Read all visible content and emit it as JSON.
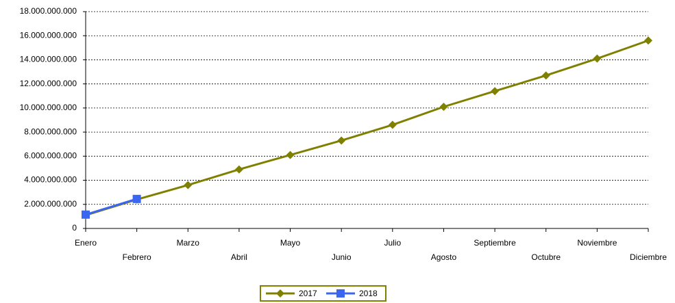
{
  "chart_data": {
    "type": "line",
    "categories": [
      "Enero",
      "Febrero",
      "Marzo",
      "Abril",
      "Mayo",
      "Junio",
      "Julio",
      "Agosto",
      "Septiembre",
      "Octubre",
      "Noviembre",
      "Diciembre"
    ],
    "series": [
      {
        "name": "2017",
        "color": "#808000",
        "marker": "diamond",
        "values": [
          1100000000,
          2400000000,
          3600000000,
          4900000000,
          6100000000,
          7300000000,
          8600000000,
          10100000000,
          11400000000,
          12700000000,
          14100000000,
          15600000000
        ]
      },
      {
        "name": "2018",
        "color": "#3a66f0",
        "marker": "square",
        "values": [
          1150000000,
          2450000000,
          null,
          null,
          null,
          null,
          null,
          null,
          null,
          null,
          null,
          null
        ]
      }
    ],
    "ylim": [
      0,
      18000000000
    ],
    "yticks": [
      0,
      {
        "value": 2000000000,
        "label": "2.000.000.000"
      },
      {
        "value": 4000000000,
        "label": "4.000.000.000"
      },
      {
        "value": 6000000000,
        "label": "6.000.000.000"
      },
      {
        "value": 8000000000,
        "label": "8.000.000.000"
      },
      {
        "value": 10000000000,
        "label": "10.000.000.000"
      },
      {
        "value": 12000000000,
        "label": "12.000.000.000"
      },
      {
        "value": 14000000000,
        "label": "14.000.000.000"
      },
      {
        "value": 16000000000,
        "label": "16.000.000.000"
      },
      {
        "value": 18000000000,
        "label": "18.000.000.000"
      }
    ],
    "grid": true,
    "legend": "bottom"
  }
}
